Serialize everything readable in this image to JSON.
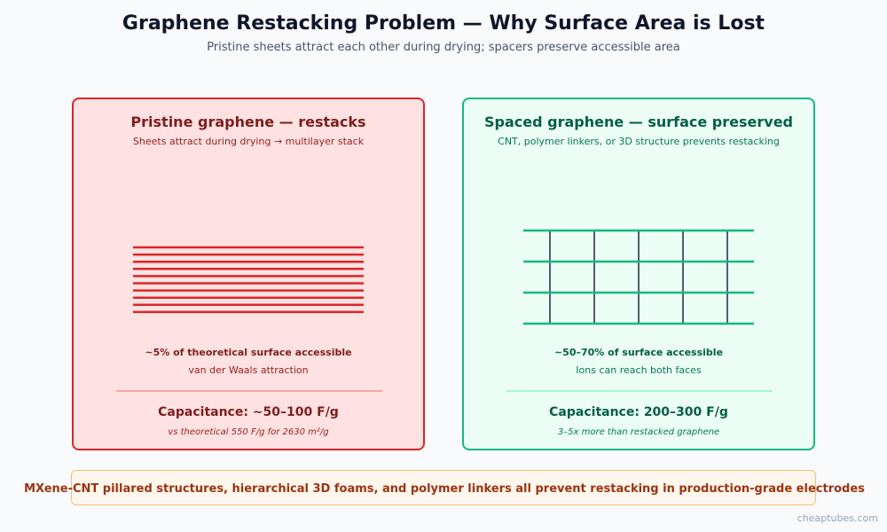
{
  "header": {
    "title": "Graphene Restacking Problem — Why Surface Area is Lost",
    "subtitle": "Pristine sheets attract each other during drying; spacers preserve accessible area"
  },
  "left_panel": {
    "title": "Pristine graphene — restacks",
    "subtitle": "Sheets attract during drying → multilayer stack",
    "stat": "~5% of theoretical surface accessible",
    "stat_sub": "van der Waals attraction",
    "capacitance": "Capacitance: ~50–100 F/g",
    "note": "vs theoretical 550 F/g for 2630 m²/g",
    "border_color": "#dc2626",
    "fill_color": "#fee2e2",
    "sheet_color": "#dc2626",
    "sheet_count": 10
  },
  "right_panel": {
    "title": "Spaced graphene — surface preserved",
    "subtitle": "CNT, polymer linkers, or 3D structure prevents restacking",
    "stat": "~50–70% of surface accessible",
    "stat_sub": "Ions can reach both faces",
    "capacitance": "Capacitance: 200–300 F/g",
    "note": "3–5x more than restacked graphene",
    "border_color": "#10b981",
    "fill_color": "#ecfdf5",
    "sheet_color": "#10b981",
    "spacer_color": "#1e293b",
    "sheet_count": 4,
    "spacer_count": 5
  },
  "banner": {
    "text": "MXene-CNT pillared structures, hierarchical 3D foams, and polymer linkers all prevent restacking in production-grade electrodes"
  },
  "watermark": "cheaptubes.com"
}
